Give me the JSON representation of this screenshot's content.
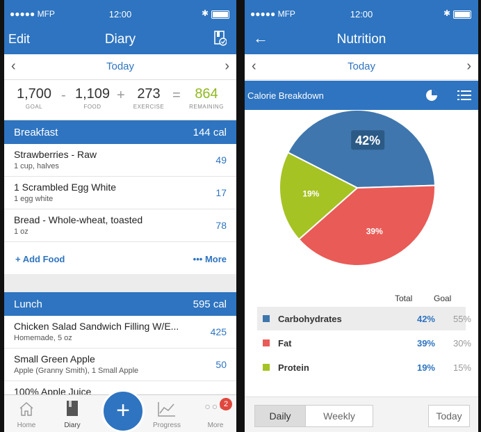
{
  "left": {
    "status": {
      "carrier": "●●●●● MFP",
      "time": "12:00"
    },
    "nav": {
      "edit": "Edit",
      "title": "Diary"
    },
    "date": "Today",
    "summary": {
      "goal": {
        "value": "1,700",
        "label": "GOAL"
      },
      "food": {
        "value": "1,109",
        "label": "FOOD"
      },
      "exercise": {
        "value": "273",
        "label": "EXERCISE"
      },
      "remaining": {
        "value": "864",
        "label": "REMAINING"
      },
      "ops": [
        "-",
        "+",
        "="
      ]
    },
    "breakfast": {
      "name": "Breakfast",
      "calories": "144 cal",
      "items": [
        {
          "name": "Strawberries - Raw",
          "desc": "1 cup, halves",
          "cal": "49"
        },
        {
          "name": "1 Scrambled Egg White",
          "desc": "1 egg white",
          "cal": "17"
        },
        {
          "name": "Bread - Whole-wheat, toasted",
          "desc": "1 oz",
          "cal": "78"
        }
      ],
      "add_food": "+ Add Food",
      "more": "••• More"
    },
    "lunch": {
      "name": "Lunch",
      "calories": "595 cal",
      "items": [
        {
          "name": "Chicken Salad Sandwich Filling W/E...",
          "desc": "Homemade, 5 oz",
          "cal": "425"
        },
        {
          "name": "Small Green Apple",
          "desc": "Apple (Granny Smith), 1 Small Apple",
          "cal": "50"
        },
        {
          "name": "100% Apple Juice",
          "desc": "",
          "cal": ""
        }
      ]
    },
    "tabs": {
      "home": "Home",
      "diary": "Diary",
      "progress": "Progress",
      "more": "More",
      "badge": "2"
    }
  },
  "right": {
    "status": {
      "carrier": "●●●●● MFP",
      "time": "12:00"
    },
    "nav": {
      "title": "Nutrition"
    },
    "date": "Today",
    "section": "Calorie Breakdown",
    "pie": {
      "slices": [
        {
          "name": "Carbohydrates",
          "pct": 42,
          "label": "42%",
          "color": "#3f76ad"
        },
        {
          "name": "Fat",
          "pct": 39,
          "label": "39%",
          "color": "#e95b57"
        },
        {
          "name": "Protein",
          "pct": 19,
          "label": "19%",
          "color": "#a6c324"
        }
      ]
    },
    "table": {
      "col_total": "Total",
      "col_goal": "Goal",
      "rows": [
        {
          "name": "Carbohydrates",
          "total": "42%",
          "goal": "55%",
          "color": "#3f76ad"
        },
        {
          "name": "Fat",
          "total": "39%",
          "goal": "30%",
          "color": "#e95b57"
        },
        {
          "name": "Protein",
          "total": "19%",
          "goal": "15%",
          "color": "#a6c324"
        }
      ]
    },
    "segment": {
      "daily": "Daily",
      "weekly": "Weekly",
      "today": "Today"
    }
  }
}
